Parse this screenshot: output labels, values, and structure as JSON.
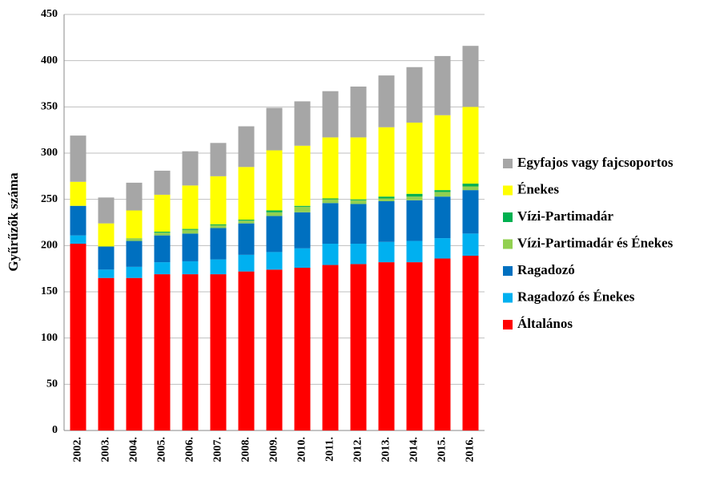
{
  "chart_data": {
    "type": "stacked_bar",
    "y_label": "Gyűrűzők száma",
    "categories": [
      "2002.",
      "2003.",
      "2004.",
      "2005.",
      "2006.",
      "2007.",
      "2008.",
      "2009.",
      "2010.",
      "2011.",
      "2012.",
      "2013.",
      "2014.",
      "2015.",
      "2016."
    ],
    "series": [
      {
        "name": "Általános",
        "color": "#ff0000",
        "values": [
          202,
          165,
          165,
          169,
          169,
          169,
          172,
          174,
          176,
          179,
          180,
          182,
          182,
          186,
          189
        ]
      },
      {
        "name": "Ragadozó és Énekes",
        "color": "#00b0f0",
        "values": [
          9,
          9,
          12,
          13,
          14,
          16,
          18,
          19,
          21,
          23,
          22,
          22,
          23,
          22,
          24
        ]
      },
      {
        "name": "Ragadozó",
        "color": "#0070c0",
        "values": [
          32,
          25,
          28,
          29,
          30,
          34,
          34,
          39,
          39,
          44,
          43,
          44,
          44,
          45,
          47
        ]
      },
      {
        "name": "Vízi-Partimadár és Énekes",
        "color": "#92d050",
        "values": [
          0,
          0,
          3,
          3,
          4,
          3,
          3,
          4,
          6,
          4,
          4,
          3,
          4,
          5,
          4
        ]
      },
      {
        "name": "Vízi-Partimadár",
        "color": "#00b050",
        "values": [
          0,
          0,
          0,
          1,
          1,
          1,
          1,
          2,
          1,
          1,
          1,
          2,
          3,
          2,
          3
        ]
      },
      {
        "name": "Énekes",
        "color": "#ffff00",
        "values": [
          26,
          25,
          30,
          40,
          47,
          52,
          57,
          65,
          65,
          66,
          67,
          75,
          77,
          81,
          83
        ]
      },
      {
        "name": "Egyfajos vagy fajcsoportos",
        "color": "#a6a6a6",
        "values": [
          50,
          28,
          30,
          26,
          37,
          36,
          44,
          46,
          48,
          50,
          55,
          56,
          60,
          64,
          66
        ]
      }
    ],
    "ylim": [
      0,
      450
    ],
    "yticks": [
      0,
      50,
      100,
      150,
      200,
      250,
      300,
      350,
      400,
      450
    ],
    "grid": true
  }
}
